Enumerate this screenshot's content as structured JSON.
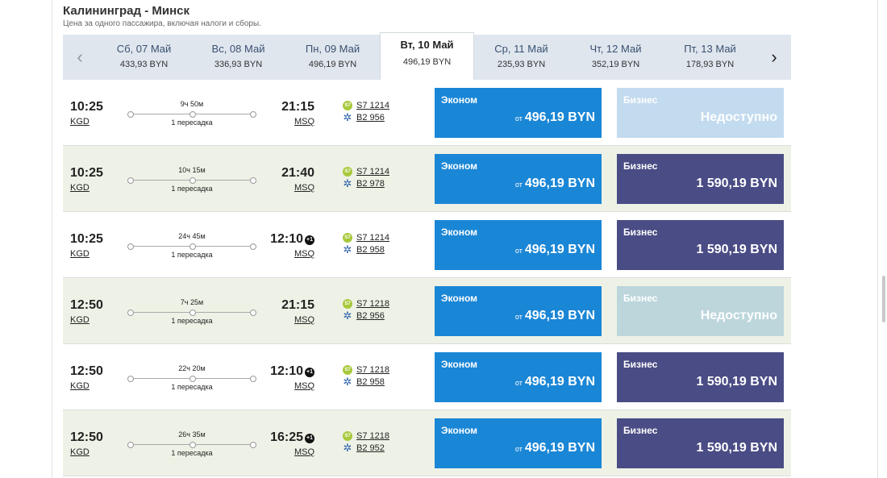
{
  "route": {
    "title": "Калининград - Минск",
    "subtitle": "Цена за одного пассажира, включая налоги и сборы."
  },
  "date_nav": {
    "prev_icon": "‹",
    "next_icon": "›",
    "dates": [
      {
        "label": "Сб, 07 Май",
        "price": "433,93 BYN"
      },
      {
        "label": "Вс, 08 Май",
        "price": "336,93 BYN"
      },
      {
        "label": "Пн, 09 Май",
        "price": "496,19 BYN"
      },
      {
        "label": "Вт, 10 Май",
        "price": "496,19 BYN",
        "selected": true
      },
      {
        "label": "Ср, 11 Май",
        "price": "235,93 BYN"
      },
      {
        "label": "Чт, 12 Май",
        "price": "352,19 BYN"
      },
      {
        "label": "Пт, 13 Май",
        "price": "178,93 BYN"
      }
    ]
  },
  "fare_labels": {
    "economy": "Эконом",
    "business": "Бизнес",
    "from": "от",
    "unavailable": "Недоступно",
    "next_day_marker": "+1"
  },
  "carrier_icons": {
    "s7": "S7",
    "b2": "✲"
  },
  "colors": {
    "economy_fare": "#1a86d6",
    "business_fare": "#4a4c85",
    "unavailable_fare": "#c3dbef",
    "alt_row": "#eef2e6",
    "date_strip": "#dfe6ee"
  },
  "flights": [
    {
      "dep_time": "10:25",
      "dep_code": "KGD",
      "duration": "9ч 50м",
      "stops": "1 пересадка",
      "arr_time": "21:15",
      "arr_code": "MSQ",
      "flight1": "S7 1214",
      "flight2": "B2 956",
      "econ_price": "496,19 BYN",
      "biz_price": "Недоступно"
    },
    {
      "dep_time": "10:25",
      "dep_code": "KGD",
      "duration": "10ч 15м",
      "stops": "1 пересадка",
      "arr_time": "21:40",
      "arr_code": "MSQ",
      "flight1": "S7 1214",
      "flight2": "B2 978",
      "econ_price": "496,19 BYN",
      "biz_price": "1 590,19 BYN"
    },
    {
      "dep_time": "10:25",
      "dep_code": "KGD",
      "duration": "24ч 45м",
      "stops": "1 пересадка",
      "arr_time": "12:10",
      "arr_code": "MSQ",
      "next_day": true,
      "flight1": "S7 1214",
      "flight2": "B2 958",
      "econ_price": "496,19 BYN",
      "biz_price": "1 590,19 BYN"
    },
    {
      "dep_time": "12:50",
      "dep_code": "KGD",
      "duration": "7ч 25м",
      "stops": "1 пересадка",
      "arr_time": "21:15",
      "arr_code": "MSQ",
      "flight1": "S7 1218",
      "flight2": "B2 956",
      "econ_price": "496,19 BYN",
      "biz_price": "Недоступно"
    },
    {
      "dep_time": "12:50",
      "dep_code": "KGD",
      "duration": "22ч 20м",
      "stops": "1 пересадка",
      "arr_time": "12:10",
      "arr_code": "MSQ",
      "next_day": true,
      "flight1": "S7 1218",
      "flight2": "B2 958",
      "econ_price": "496,19 BYN",
      "biz_price": "1 590,19 BYN"
    },
    {
      "dep_time": "12:50",
      "dep_code": "KGD",
      "duration": "26ч 35м",
      "stops": "1 пересадка",
      "arr_time": "16:25",
      "arr_code": "MSQ",
      "next_day": true,
      "flight1": "S7 1218",
      "flight2": "B2 952",
      "econ_price": "496,19 BYN",
      "biz_price": "1 590,19 BYN"
    }
  ]
}
